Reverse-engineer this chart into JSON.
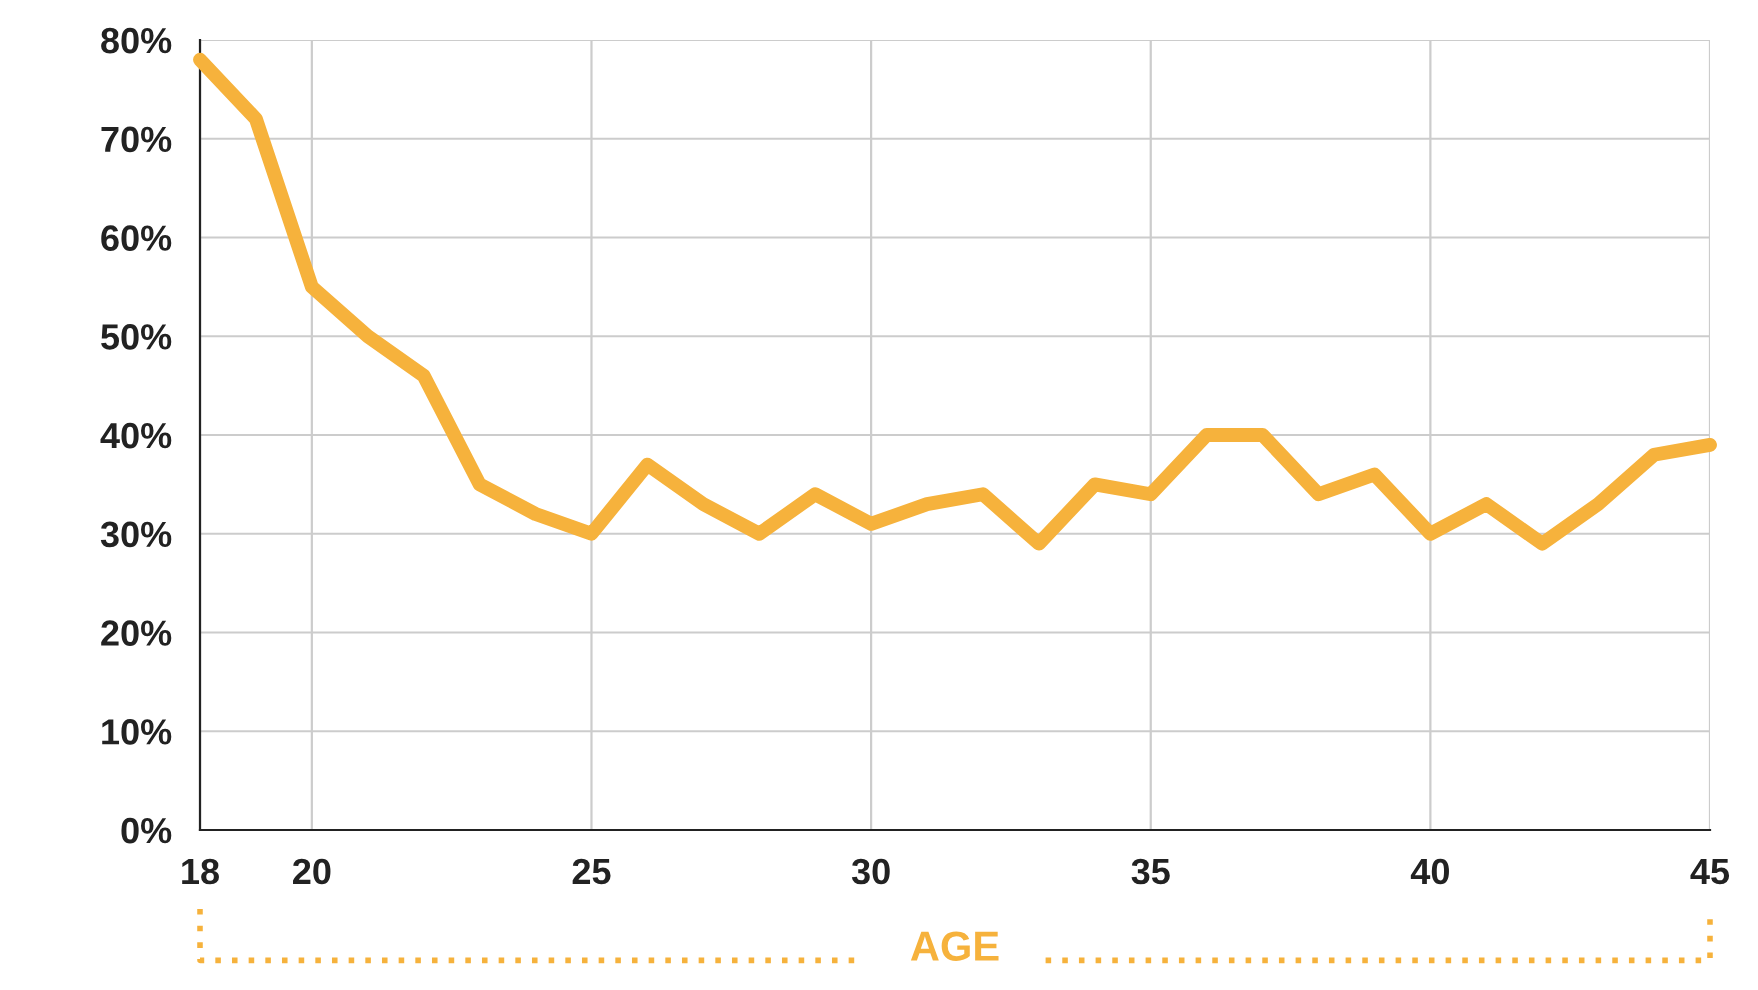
{
  "chart_data": {
    "type": "line",
    "xlabel": "AGE",
    "x": [
      18,
      19,
      20,
      21,
      22,
      23,
      24,
      25,
      26,
      27,
      28,
      29,
      30,
      31,
      32,
      33,
      34,
      35,
      36,
      37,
      38,
      39,
      40,
      41,
      42,
      43,
      44,
      45
    ],
    "series": [
      {
        "color": "#f6b23c",
        "values": [
          78,
          72,
          55,
          50,
          46,
          35,
          32,
          30,
          37,
          33,
          30,
          34,
          31,
          33,
          34,
          29,
          35,
          34,
          40,
          40,
          34,
          36,
          30,
          33,
          29,
          33,
          38,
          39
        ]
      }
    ],
    "xlim": [
      18,
      45
    ],
    "xticks": [
      18,
      20,
      25,
      30,
      35,
      40,
      45
    ],
    "ylim": [
      0,
      80
    ],
    "yticks": [
      {
        "value": 0,
        "label": "0%"
      },
      {
        "value": 10,
        "label": "10%"
      },
      {
        "value": 20,
        "label": "20%"
      },
      {
        "value": 30,
        "label": "30%"
      },
      {
        "value": 40,
        "label": "40%"
      },
      {
        "value": 50,
        "label": "50%"
      },
      {
        "value": 60,
        "label": "60%"
      },
      {
        "value": 70,
        "label": "70%"
      },
      {
        "value": 80,
        "label": "80%"
      }
    ],
    "grid": true,
    "marker": "none",
    "line_style": "solid",
    "legend": false
  }
}
